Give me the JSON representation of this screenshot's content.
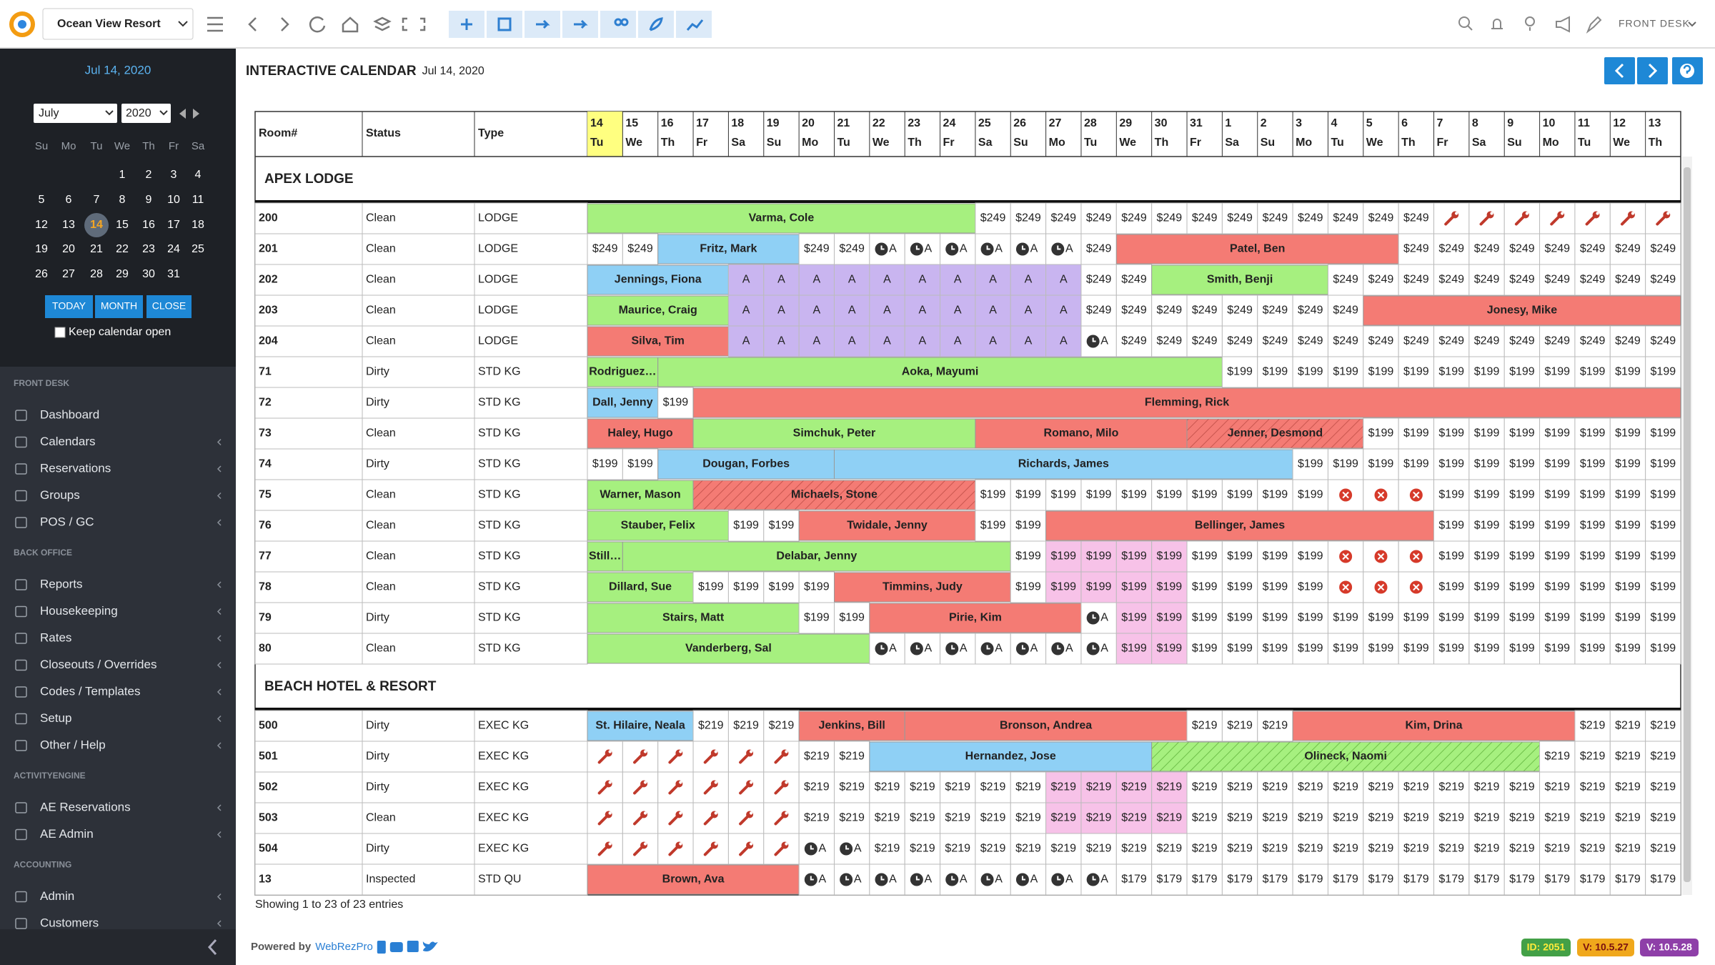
{
  "topbar": {
    "property": "Ocean View Resort",
    "user": "FRONT DESK"
  },
  "sidebar": {
    "date": "Jul 14, 2020",
    "month": "July",
    "year": 2020,
    "weekdays": [
      "Su",
      "Mo",
      "Tu",
      "We",
      "Th",
      "Fr",
      "Sa"
    ],
    "weeks": [
      [
        null,
        null,
        null,
        1,
        2,
        3,
        4
      ],
      [
        5,
        6,
        7,
        8,
        9,
        10,
        11
      ],
      [
        12,
        13,
        14,
        15,
        16,
        17,
        18
      ],
      [
        19,
        20,
        21,
        22,
        23,
        24,
        25
      ],
      [
        26,
        27,
        28,
        29,
        30,
        31,
        null
      ]
    ],
    "selected": 14,
    "buttons": [
      "TODAY",
      "MONTH",
      "CLOSE"
    ],
    "keep_open": "Keep calendar open",
    "sections": [
      {
        "title": "FRONT DESK",
        "items": [
          "Dashboard",
          "Calendars",
          "Reservations",
          "Groups",
          "POS / GC"
        ]
      },
      {
        "title": "BACK OFFICE",
        "items": [
          "Reports",
          "Housekeeping",
          "Rates",
          "Closeouts / Overrides",
          "Codes / Templates",
          "Setup",
          "Other / Help"
        ]
      },
      {
        "title": "ACTIVITYENGINE",
        "items": [
          "AE Reservations",
          "AE Admin"
        ]
      },
      {
        "title": "ACCOUNTING",
        "items": [
          "Admin",
          "Customers"
        ]
      }
    ]
  },
  "page": {
    "title": "INTERACTIVE CALENDAR",
    "date": "Jul 14, 2020"
  },
  "table": {
    "headers": [
      "Room#",
      "Status",
      "Type"
    ],
    "days": [
      {
        "day": 14,
        "dow": "Tu",
        "highlight": true
      },
      {
        "day": 15,
        "dow": "We"
      },
      {
        "day": 16,
        "dow": "Th"
      },
      {
        "day": 17,
        "dow": "Fr"
      },
      {
        "day": 18,
        "dow": "Sa"
      },
      {
        "day": 19,
        "dow": "Su"
      },
      {
        "day": 20,
        "dow": "Mo"
      },
      {
        "day": 21,
        "dow": "Tu"
      },
      {
        "day": 22,
        "dow": "We"
      },
      {
        "day": 23,
        "dow": "Th"
      },
      {
        "day": 24,
        "dow": "Fr"
      },
      {
        "day": 25,
        "dow": "Sa"
      },
      {
        "day": 26,
        "dow": "Su"
      },
      {
        "day": 27,
        "dow": "Mo"
      },
      {
        "day": 28,
        "dow": "Tu"
      },
      {
        "day": 29,
        "dow": "We"
      },
      {
        "day": 30,
        "dow": "Th"
      },
      {
        "day": 31,
        "dow": "Fr"
      },
      {
        "day": 1,
        "dow": "Sa"
      },
      {
        "day": 2,
        "dow": "Su"
      },
      {
        "day": 3,
        "dow": "Mo"
      },
      {
        "day": 4,
        "dow": "Tu"
      },
      {
        "day": 5,
        "dow": "We"
      },
      {
        "day": 6,
        "dow": "Th"
      },
      {
        "day": 7,
        "dow": "Fr"
      },
      {
        "day": 8,
        "dow": "Sa"
      },
      {
        "day": 9,
        "dow": "Su"
      },
      {
        "day": 10,
        "dow": "Mo"
      },
      {
        "day": 11,
        "dow": "Tu"
      },
      {
        "day": 12,
        "dow": "We"
      },
      {
        "day": 13,
        "dow": "Th"
      }
    ],
    "groups": [
      {
        "name": "APEX LODGE",
        "rooms": [
          {
            "room": 200,
            "status": "Clean",
            "type": "LODGE",
            "cells": [
              {
                "text": "Varma, Cole",
                "span": 11,
                "style": "green"
              },
              {
                "text": "$249",
                "span": 13,
                "style": "rate"
              },
              {
                "span": 7,
                "style": "maintenance"
              }
            ]
          },
          {
            "room": 201,
            "status": "Clean",
            "type": "LODGE",
            "cells": [
              {
                "text": "$249",
                "span": 2,
                "style": "rate"
              },
              {
                "text": "Fritz, Mark",
                "span": 4,
                "style": "blue"
              },
              {
                "text": "$249",
                "span": 2,
                "style": "rate"
              },
              {
                "text": "A",
                "span": 6,
                "style": "hold"
              },
              {
                "text": "$249",
                "span": 1,
                "style": "rate"
              },
              {
                "text": "Patel, Ben",
                "span": 8,
                "style": "red"
              },
              {
                "text": "$249",
                "span": 8,
                "style": "rate"
              }
            ]
          },
          {
            "room": 202,
            "status": "Clean",
            "type": "LODGE",
            "cells": [
              {
                "text": "Jennings, Fiona",
                "span": 4,
                "style": "blue"
              },
              {
                "text": "A",
                "span": 10,
                "style": "purple"
              },
              {
                "text": "$249",
                "span": 2,
                "style": "rate"
              },
              {
                "text": "Smith, Benji",
                "span": 5,
                "style": "green"
              },
              {
                "text": "$249",
                "span": 10,
                "style": "rate"
              }
            ]
          },
          {
            "room": 203,
            "status": "Clean",
            "type": "LODGE",
            "cells": [
              {
                "text": "Maurice, Craig",
                "span": 4,
                "style": "green"
              },
              {
                "text": "A",
                "span": 10,
                "style": "purple"
              },
              {
                "text": "$249",
                "span": 8,
                "style": "rate"
              },
              {
                "text": "Jonesy, Mike",
                "span": 9,
                "style": "red"
              }
            ]
          },
          {
            "room": 204,
            "status": "Clean",
            "type": "LODGE",
            "cells": [
              {
                "text": "Silva, Tim",
                "span": 4,
                "style": "red"
              },
              {
                "text": "A",
                "span": 10,
                "style": "purple"
              },
              {
                "text": "A",
                "span": 1,
                "style": "hold"
              },
              {
                "text": "$249",
                "span": 16,
                "style": "rate"
              }
            ]
          },
          {
            "room": 71,
            "status": "Dirty",
            "type": "STD KG",
            "cells": [
              {
                "text": "Rodriguez…",
                "span": 2,
                "style": "green"
              },
              {
                "text": "Aoka, Mayumi",
                "span": 16,
                "style": "green"
              },
              {
                "text": "$199",
                "span": 13,
                "style": "rate"
              }
            ]
          },
          {
            "room": 72,
            "status": "Dirty",
            "type": "STD KG",
            "cells": [
              {
                "text": "Dall, Jenny",
                "span": 2,
                "style": "blue"
              },
              {
                "text": "$199",
                "span": 1,
                "style": "rate"
              },
              {
                "text": "Flemming, Rick",
                "span": 28,
                "style": "red"
              }
            ]
          },
          {
            "room": 73,
            "status": "Clean",
            "type": "STD KG",
            "cells": [
              {
                "text": "Haley, Hugo",
                "span": 3,
                "style": "red"
              },
              {
                "text": "Simchuk, Peter",
                "span": 8,
                "style": "green"
              },
              {
                "text": "Romano, Milo",
                "span": 6,
                "style": "red"
              },
              {
                "text": "Jenner, Desmond",
                "span": 5,
                "style": "red-hatched"
              },
              {
                "text": "$199",
                "span": 9,
                "style": "rate"
              }
            ]
          },
          {
            "room": 74,
            "status": "Dirty",
            "type": "STD KG",
            "cells": [
              {
                "text": "$199",
                "span": 2,
                "style": "rate"
              },
              {
                "text": "Dougan, Forbes",
                "span": 5,
                "style": "blue"
              },
              {
                "text": "Richards, James",
                "span": 13,
                "style": "blue"
              },
              {
                "text": "$199",
                "span": 11,
                "style": "rate"
              }
            ]
          },
          {
            "room": 75,
            "status": "Clean",
            "type": "STD KG",
            "cells": [
              {
                "text": "Warner, Mason",
                "span": 3,
                "style": "green"
              },
              {
                "text": "Michaels, Stone",
                "span": 8,
                "style": "red-hatched"
              },
              {
                "text": "$199",
                "span": 10,
                "style": "rate"
              },
              {
                "span": 3,
                "style": "closed"
              },
              {
                "text": "$199",
                "span": 7,
                "style": "rate"
              }
            ]
          },
          {
            "room": 76,
            "status": "Clean",
            "type": "STD KG",
            "cells": [
              {
                "text": "Stauber, Felix",
                "span": 4,
                "style": "green"
              },
              {
                "text": "$199",
                "span": 2,
                "style": "rate"
              },
              {
                "text": "Twidale, Jenny",
                "span": 5,
                "style": "red"
              },
              {
                "text": "$199",
                "span": 2,
                "style": "rate"
              },
              {
                "text": "Bellinger, James",
                "span": 11,
                "style": "red"
              },
              {
                "text": "$199",
                "span": 7,
                "style": "rate"
              }
            ]
          },
          {
            "room": 77,
            "status": "Clean",
            "type": "STD KG",
            "cells": [
              {
                "text": "Still…",
                "span": 1,
                "style": "green"
              },
              {
                "text": "Delabar, Jenny",
                "span": 11,
                "style": "green"
              },
              {
                "text": "$199",
                "span": 1,
                "style": "rate"
              },
              {
                "text": "$199",
                "span": 4,
                "style": "rate-pink"
              },
              {
                "text": "$199",
                "span": 4,
                "style": "rate"
              },
              {
                "span": 3,
                "style": "closed"
              },
              {
                "text": "$199",
                "span": 7,
                "style": "rate"
              }
            ]
          },
          {
            "room": 78,
            "status": "Clean",
            "type": "STD KG",
            "cells": [
              {
                "text": "Dillard, Sue",
                "span": 3,
                "style": "green"
              },
              {
                "text": "$199",
                "span": 4,
                "style": "rate"
              },
              {
                "text": "Timmins, Judy",
                "span": 5,
                "style": "red"
              },
              {
                "text": "$199",
                "span": 1,
                "style": "rate"
              },
              {
                "text": "$199",
                "span": 4,
                "style": "rate-pink"
              },
              {
                "text": "$199",
                "span": 4,
                "style": "rate"
              },
              {
                "span": 3,
                "style": "closed"
              },
              {
                "text": "$199",
                "span": 7,
                "style": "rate"
              }
            ]
          },
          {
            "room": 79,
            "status": "Dirty",
            "type": "STD KG",
            "cells": [
              {
                "text": "Stairs, Matt",
                "span": 6,
                "style": "green"
              },
              {
                "text": "$199",
                "span": 2,
                "style": "rate"
              },
              {
                "text": "Pirie, Kim",
                "span": 6,
                "style": "red"
              },
              {
                "text": "A",
                "span": 1,
                "style": "hold"
              },
              {
                "text": "$199",
                "span": 2,
                "style": "rate-pink"
              },
              {
                "text": "$199",
                "span": 14,
                "style": "rate"
              }
            ]
          },
          {
            "room": 80,
            "status": "Clean",
            "type": "STD KG",
            "cells": [
              {
                "text": "Vanderberg, Sal",
                "span": 8,
                "style": "green"
              },
              {
                "text": "A",
                "span": 7,
                "style": "hold"
              },
              {
                "text": "$199",
                "span": 2,
                "style": "rate-pink"
              },
              {
                "text": "$199",
                "span": 14,
                "style": "rate"
              }
            ]
          }
        ]
      },
      {
        "name": "BEACH HOTEL & RESORT",
        "rooms": [
          {
            "room": 500,
            "status": "Dirty",
            "type": "EXEC KG",
            "cells": [
              {
                "text": "St. Hilaire, Neala",
                "span": 3,
                "style": "blue"
              },
              {
                "text": "$219",
                "span": 3,
                "style": "rate"
              },
              {
                "text": "Jenkins, Bill",
                "span": 3,
                "style": "red"
              },
              {
                "text": "Bronson, Andrea",
                "span": 8,
                "style": "red"
              },
              {
                "text": "$219",
                "span": 3,
                "style": "rate"
              },
              {
                "text": "Kim, Drina",
                "span": 8,
                "style": "red"
              },
              {
                "text": "$219",
                "span": 3,
                "style": "rate"
              }
            ]
          },
          {
            "room": 501,
            "status": "Dirty",
            "type": "EXEC KG",
            "cells": [
              {
                "span": 6,
                "style": "maintenance"
              },
              {
                "text": "$219",
                "span": 2,
                "style": "rate"
              },
              {
                "text": "Hernandez, Jose",
                "span": 8,
                "style": "blue"
              },
              {
                "text": "Olineck, Naomi",
                "span": 11,
                "style": "green-hatched"
              },
              {
                "text": "$219",
                "span": 4,
                "style": "rate"
              }
            ]
          },
          {
            "room": 502,
            "status": "Dirty",
            "type": "EXEC KG",
            "cells": [
              {
                "span": 6,
                "style": "maintenance"
              },
              {
                "text": "$219",
                "span": 7,
                "style": "rate"
              },
              {
                "text": "$219",
                "span": 4,
                "style": "rate-pink"
              },
              {
                "text": "$219",
                "span": 14,
                "style": "rate"
              }
            ]
          },
          {
            "room": 503,
            "status": "Clean",
            "type": "EXEC KG",
            "cells": [
              {
                "span": 6,
                "style": "maintenance"
              },
              {
                "text": "$219",
                "span": 7,
                "style": "rate"
              },
              {
                "text": "$219",
                "span": 4,
                "style": "rate-pink"
              },
              {
                "text": "$219",
                "span": 14,
                "style": "rate"
              }
            ]
          },
          {
            "room": 504,
            "status": "Dirty",
            "type": "EXEC KG",
            "cells": [
              {
                "span": 6,
                "style": "maintenance"
              },
              {
                "text": "A",
                "span": 2,
                "style": "hold"
              },
              {
                "text": "$219",
                "span": 23,
                "style": "rate"
              }
            ]
          },
          {
            "room": 13,
            "status": "Inspected",
            "type": "STD QU",
            "cells": [
              {
                "text": "Brown, Ava",
                "span": 6,
                "style": "red"
              },
              {
                "text": "A",
                "span": 9,
                "style": "hold"
              },
              {
                "text": "$179",
                "span": 16,
                "style": "rate"
              }
            ]
          }
        ]
      }
    ],
    "info": "Showing 1 to 23 of 23 entries"
  },
  "footer": {
    "powered": "Powered by",
    "brand": "WebRezPro",
    "badges": [
      "ID: 2051",
      "V: 10.5.27",
      "V: 10.5.28"
    ]
  }
}
